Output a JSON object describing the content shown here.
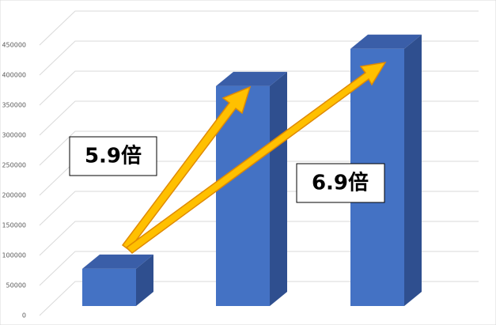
{
  "chart_data": {
    "type": "bar3d",
    "categories": [
      null,
      null,
      null
    ],
    "values": [
      62000,
      366000,
      428000
    ],
    "color": "#4472c4",
    "ylim": [
      0,
      450000
    ],
    "yticks": [
      0,
      50000,
      100000,
      150000,
      200000,
      250000,
      300000,
      350000,
      400000,
      450000
    ],
    "grid": true,
    "annotations": [
      "5.9倍",
      "6.9倍"
    ]
  }
}
